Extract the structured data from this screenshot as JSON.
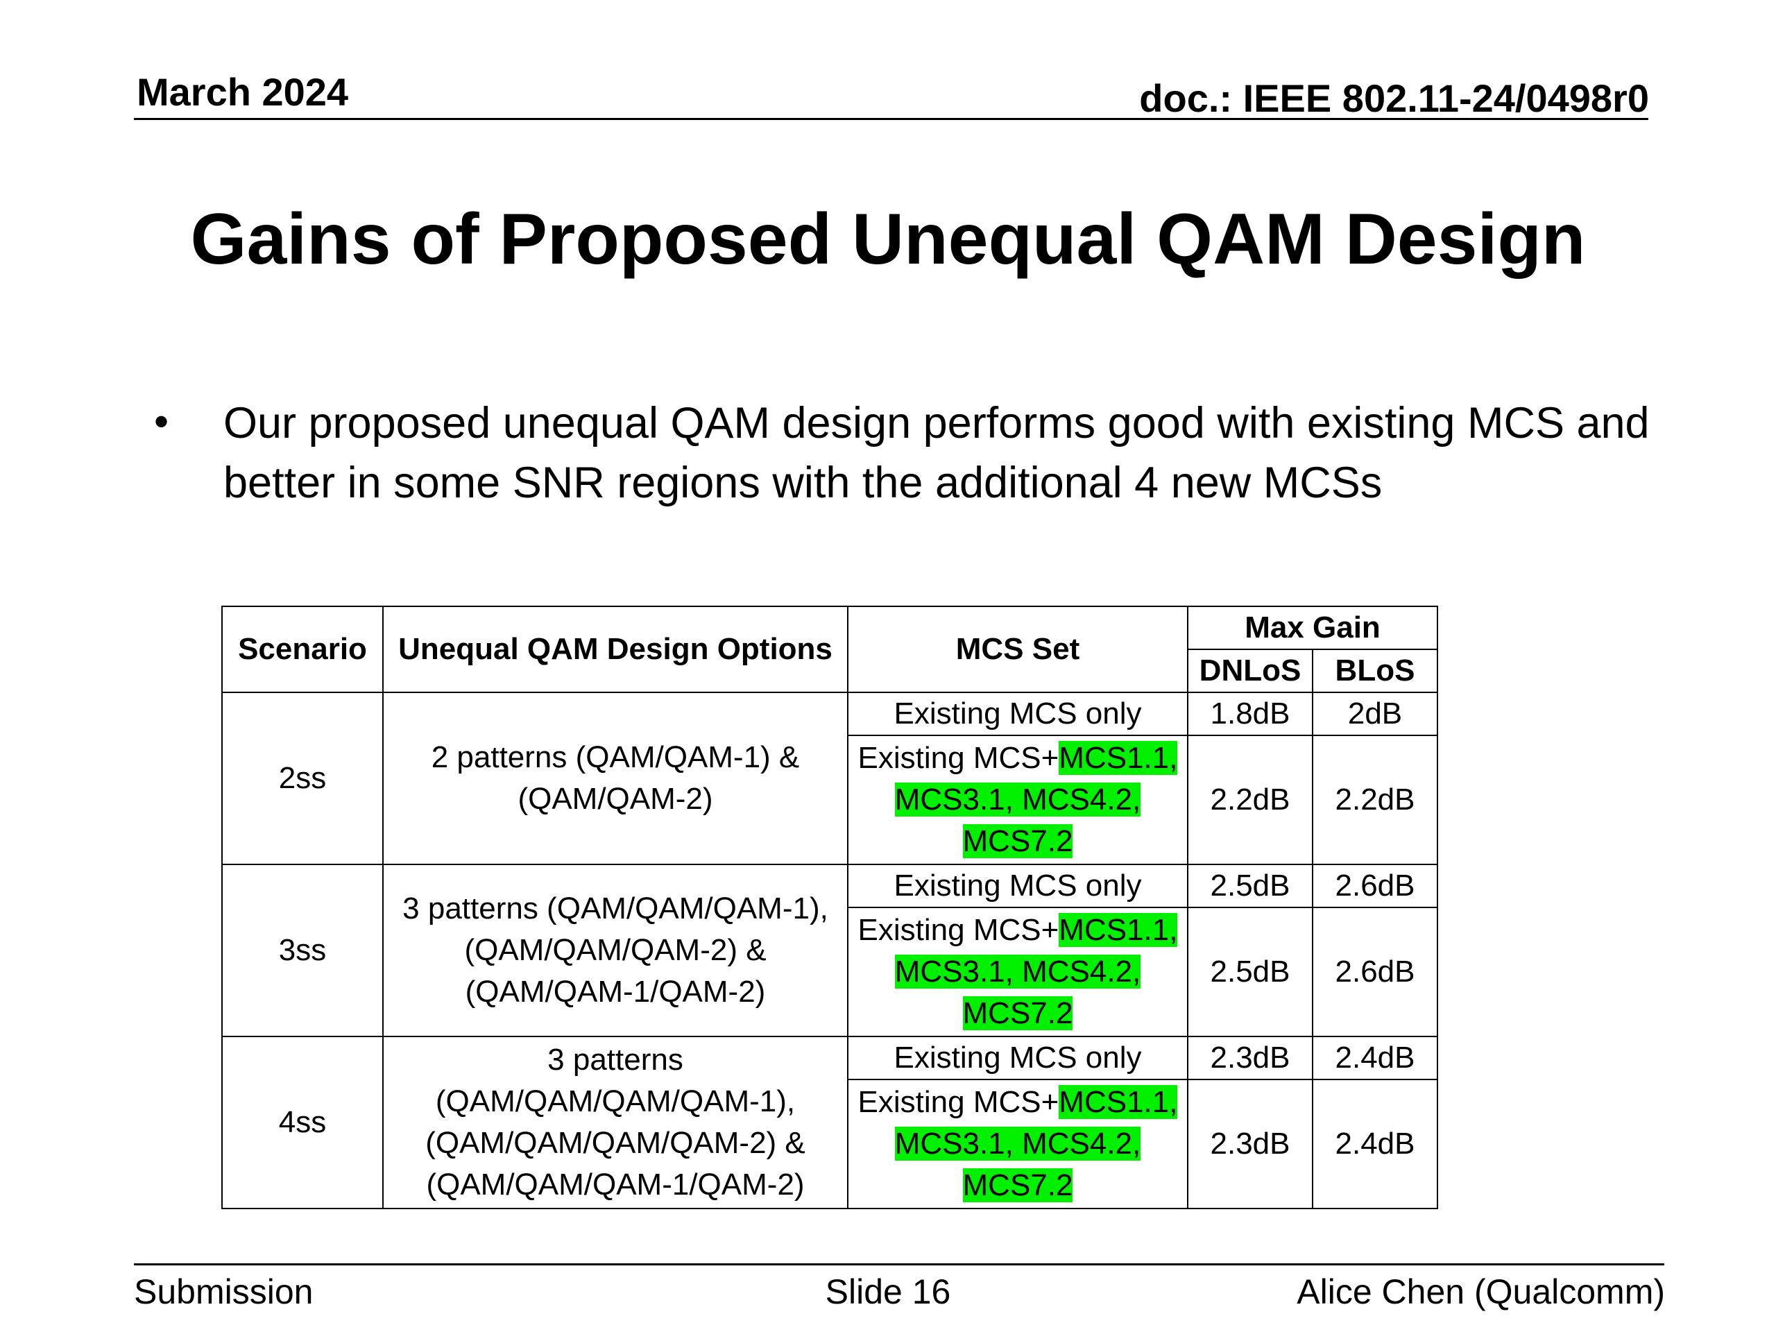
{
  "header": {
    "date": "March 2024",
    "doc": "doc.: IEEE 802.11-24/0498r0"
  },
  "title": "Gains of Proposed Unequal QAM Design",
  "bullet": {
    "symbol": "•",
    "text": "Our proposed unequal QAM design performs good with existing MCS and better in some SNR regions with the additional 4 new MCSs"
  },
  "table": {
    "headers": {
      "scenario": "Scenario",
      "options": "Unequal QAM Design Options",
      "mcs_set": "MCS Set",
      "max_gain": "Max Gain",
      "dnlos": "DNLoS",
      "blos": "BLoS"
    },
    "rows": [
      {
        "scenario": "2ss",
        "options": "2 patterns (QAM/QAM-1) & (QAM/QAM-2)",
        "existing_label": "Existing MCS only",
        "existing_dnlos": "1.8dB",
        "existing_blos": "2dB",
        "new_prefix": "Existing MCS+",
        "new_line1": "MCS1.1,",
        "new_line2": "MCS3.1, MCS4.2,",
        "new_line3": "MCS7.2",
        "new_dnlos": "2.2dB",
        "new_blos": "2.2dB"
      },
      {
        "scenario": "3ss",
        "options": "3 patterns (QAM/QAM/QAM-1), (QAM/QAM/QAM-2) & (QAM/QAM-1/QAM-2)",
        "existing_label": "Existing MCS only",
        "existing_dnlos": "2.5dB",
        "existing_blos": "2.6dB",
        "new_prefix": "Existing MCS+",
        "new_line1": "MCS1.1,",
        "new_line2": "MCS3.1, MCS4.2,",
        "new_line3": "MCS7.2",
        "new_dnlos": "2.5dB",
        "new_blos": "2.6dB"
      },
      {
        "scenario": "4ss",
        "options": "3 patterns (QAM/QAM/QAM/QAM-1), (QAM/QAM/QAM/QAM-2) & (QAM/QAM/QAM-1/QAM-2)",
        "existing_label": "Existing MCS only",
        "existing_dnlos": "2.3dB",
        "existing_blos": "2.4dB",
        "new_prefix": "Existing MCS+",
        "new_line1": "MCS1.1,",
        "new_line2": "MCS3.1, MCS4.2,",
        "new_line3": "MCS7.2",
        "new_dnlos": "2.3dB",
        "new_blos": "2.4dB"
      }
    ],
    "highlight_color": "#00f000"
  },
  "footer": {
    "left": "Submission",
    "center": "Slide 16",
    "right": "Alice Chen (Qualcomm)"
  }
}
